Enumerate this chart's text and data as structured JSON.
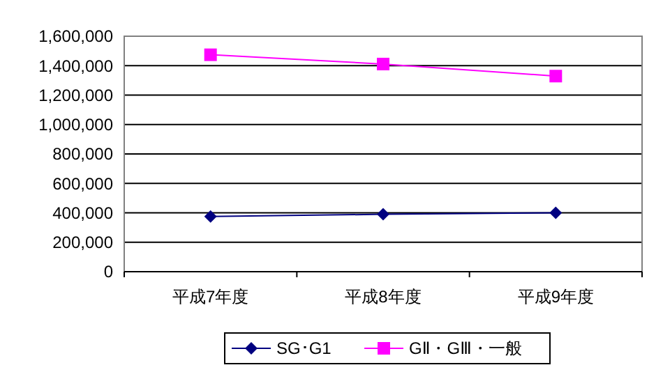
{
  "chart_data": {
    "type": "line",
    "categories": [
      "平成7年度",
      "平成8年度",
      "平成9年度"
    ],
    "series": [
      {
        "name": "SG･G1",
        "color": "#000080",
        "marker": "diamond",
        "values": [
          375000,
          390000,
          400000
        ]
      },
      {
        "name": "GⅡ・GⅢ・一般",
        "color": "#ff00ff",
        "marker": "square",
        "values": [
          1474000,
          1411000,
          1329000
        ]
      }
    ],
    "ylim": [
      0,
      1600000
    ],
    "yticks": [
      {
        "value": 0,
        "label": "0"
      },
      {
        "value": 200000,
        "label": "200,000"
      },
      {
        "value": 400000,
        "label": "400,000"
      },
      {
        "value": 600000,
        "label": "600,000"
      },
      {
        "value": 800000,
        "label": "800,000"
      },
      {
        "value": 1000000,
        "label": "1,000,000"
      },
      {
        "value": 1200000,
        "label": "1,200,000"
      },
      {
        "value": 1400000,
        "label": "1,400,000"
      },
      {
        "value": 1600000,
        "label": "1,600,000"
      }
    ],
    "grid": "y",
    "legend": "bottom"
  }
}
